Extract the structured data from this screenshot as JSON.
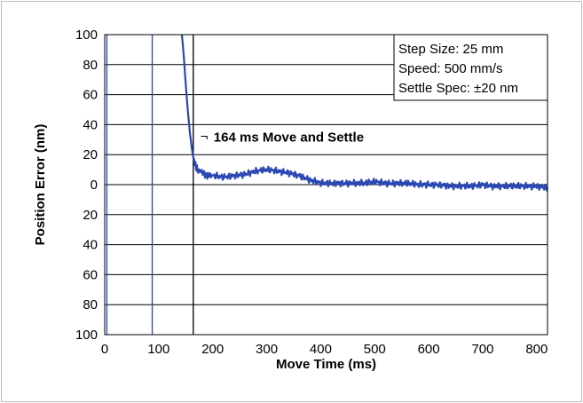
{
  "chart_data": {
    "type": "line",
    "title": "",
    "xlabel": "Move Time (ms)",
    "ylabel": "Position Error (nm)",
    "xlim": [
      0,
      820
    ],
    "ylim": [
      -100,
      100
    ],
    "x_ticks": [
      0,
      100,
      200,
      300,
      400,
      500,
      600,
      700,
      800
    ],
    "x_tick_labels": [
      "0",
      "100",
      "200",
      "300",
      "400",
      "500",
      "600",
      "700",
      "800"
    ],
    "y_ticks": [
      100,
      80,
      60,
      40,
      20,
      0,
      -20,
      -40,
      -60,
      -80,
      -100
    ],
    "y_tick_labels": [
      "100",
      "80",
      "60",
      "40",
      "20",
      "0",
      "20",
      "40",
      "60",
      "80",
      "100"
    ],
    "grid": "horizontal",
    "legend": {
      "placement": "top-right",
      "lines": [
        "Step Size: 25 mm",
        "Speed: 500 mm/s",
        "Settle Spec: ±20 nm"
      ]
    },
    "annotation": {
      "text": "164 ms Move and Settle",
      "marker": "¬",
      "x": 164,
      "y": 28
    },
    "vertical_lines": [
      {
        "x": 4,
        "color": "#2a48b4"
      },
      {
        "x": 88,
        "color": "#2a48b4"
      },
      {
        "x": 164,
        "color": "#000000"
      }
    ],
    "series": [
      {
        "color": "#2a48b4",
        "x": [
          143,
          146,
          149,
          152,
          155,
          158,
          161,
          164,
          168,
          172,
          180,
          190,
          200,
          220,
          240,
          260,
          280,
          300,
          320,
          340,
          360,
          380,
          400,
          420,
          440,
          460,
          480,
          500,
          520,
          540,
          560,
          580,
          600,
          620,
          640,
          660,
          680,
          700,
          720,
          740,
          760,
          780,
          800,
          820
        ],
        "y": [
          100,
          88,
          72,
          58,
          45,
          34,
          25,
          18,
          13,
          10,
          8,
          6,
          6,
          5,
          6,
          7,
          9,
          10,
          9,
          8,
          6,
          3,
          1,
          1,
          1,
          1,
          1,
          2,
          1,
          1,
          1,
          0,
          0,
          0,
          -1,
          -1,
          -1,
          0,
          -1,
          -1,
          -1,
          -1,
          -1,
          -2
        ]
      }
    ]
  }
}
